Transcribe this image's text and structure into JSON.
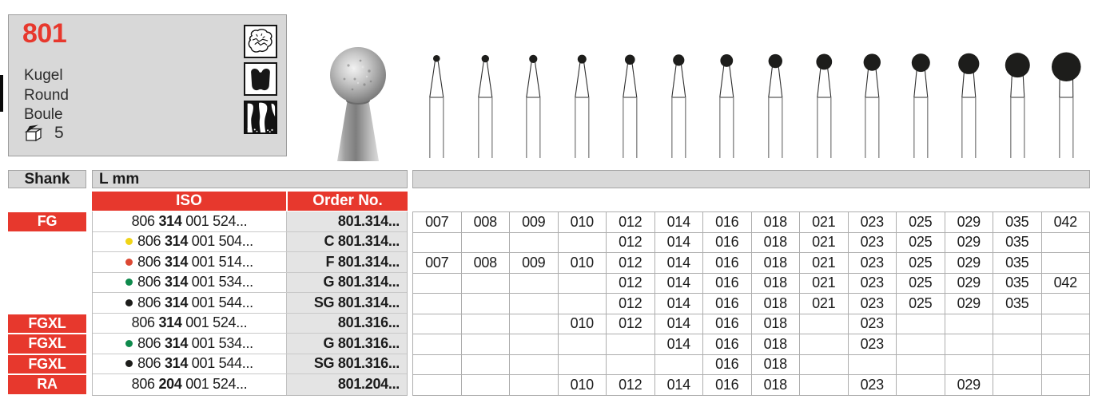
{
  "info_box": {
    "product_number": "801",
    "name_de": "Kugel",
    "name_en": "Round",
    "name_fr": "Boule",
    "pack_quantity": "5",
    "icons": [
      "tooth-occlusal-icon",
      "tooth-crown-icon",
      "tooth-root-icon"
    ]
  },
  "colors": {
    "red": "#e7382d",
    "panel_gray": "#d8d8d8",
    "order_col_gray": "#e4e4e4",
    "grid_line": "#adadad",
    "dot_yellow": "#f0d417",
    "dot_red": "#dc4833",
    "dot_green": "#0e8a4c",
    "dot_black": "#1d1d1b"
  },
  "table": {
    "shank_header": "Shank",
    "length_header": "L mm",
    "iso_header": "ISO",
    "order_header": "Order No.",
    "size_columns": [
      "007",
      "008",
      "009",
      "010",
      "012",
      "014",
      "016",
      "018",
      "021",
      "023",
      "025",
      "029",
      "035",
      "042"
    ],
    "rows": [
      {
        "shank": "FG",
        "dot": null,
        "iso": [
          "806",
          "314",
          "001 524..."
        ],
        "order": "801.314...",
        "sizes": [
          "007",
          "008",
          "009",
          "010",
          "012",
          "014",
          "016",
          "018",
          "021",
          "023",
          "025",
          "029",
          "035",
          "042"
        ]
      },
      {
        "shank": null,
        "dot": "yellow",
        "iso": [
          "806",
          "314",
          "001 504..."
        ],
        "order": "C 801.314...",
        "sizes": [
          "012",
          "014",
          "016",
          "018",
          "021",
          "023",
          "025",
          "029",
          "035"
        ]
      },
      {
        "shank": null,
        "dot": "red",
        "iso": [
          "806",
          "314",
          "001 514..."
        ],
        "order": "F 801.314...",
        "sizes": [
          "007",
          "008",
          "009",
          "010",
          "012",
          "014",
          "016",
          "018",
          "021",
          "023",
          "025",
          "029",
          "035"
        ]
      },
      {
        "shank": null,
        "dot": "green",
        "iso": [
          "806",
          "314",
          "001 534..."
        ],
        "order": "G 801.314...",
        "sizes": [
          "012",
          "014",
          "016",
          "018",
          "021",
          "023",
          "025",
          "029",
          "035",
          "042"
        ]
      },
      {
        "shank": null,
        "dot": "black",
        "iso": [
          "806",
          "314",
          "001 544..."
        ],
        "order": "SG 801.314...",
        "sizes": [
          "012",
          "014",
          "016",
          "018",
          "021",
          "023",
          "025",
          "029",
          "035"
        ]
      },
      {
        "shank": "FGXL",
        "dot": null,
        "iso": [
          "806",
          "314",
          "001 524..."
        ],
        "order": "801.316...",
        "sizes": [
          "010",
          "012",
          "014",
          "016",
          "018",
          "023"
        ]
      },
      {
        "shank": "FGXL",
        "dot": "green",
        "iso": [
          "806",
          "314",
          "001 534..."
        ],
        "order": "G 801.316...",
        "sizes": [
          "014",
          "016",
          "018",
          "023"
        ]
      },
      {
        "shank": "FGXL",
        "dot": "black",
        "iso": [
          "806",
          "314",
          "001 544..."
        ],
        "order": "SG 801.316...",
        "sizes": [
          "016",
          "018"
        ]
      },
      {
        "shank": "RA",
        "dot": null,
        "iso": [
          "806",
          "204",
          "001 524..."
        ],
        "order": "801.204...",
        "sizes": [
          "010",
          "012",
          "014",
          "016",
          "018",
          "023",
          "029"
        ]
      }
    ]
  }
}
